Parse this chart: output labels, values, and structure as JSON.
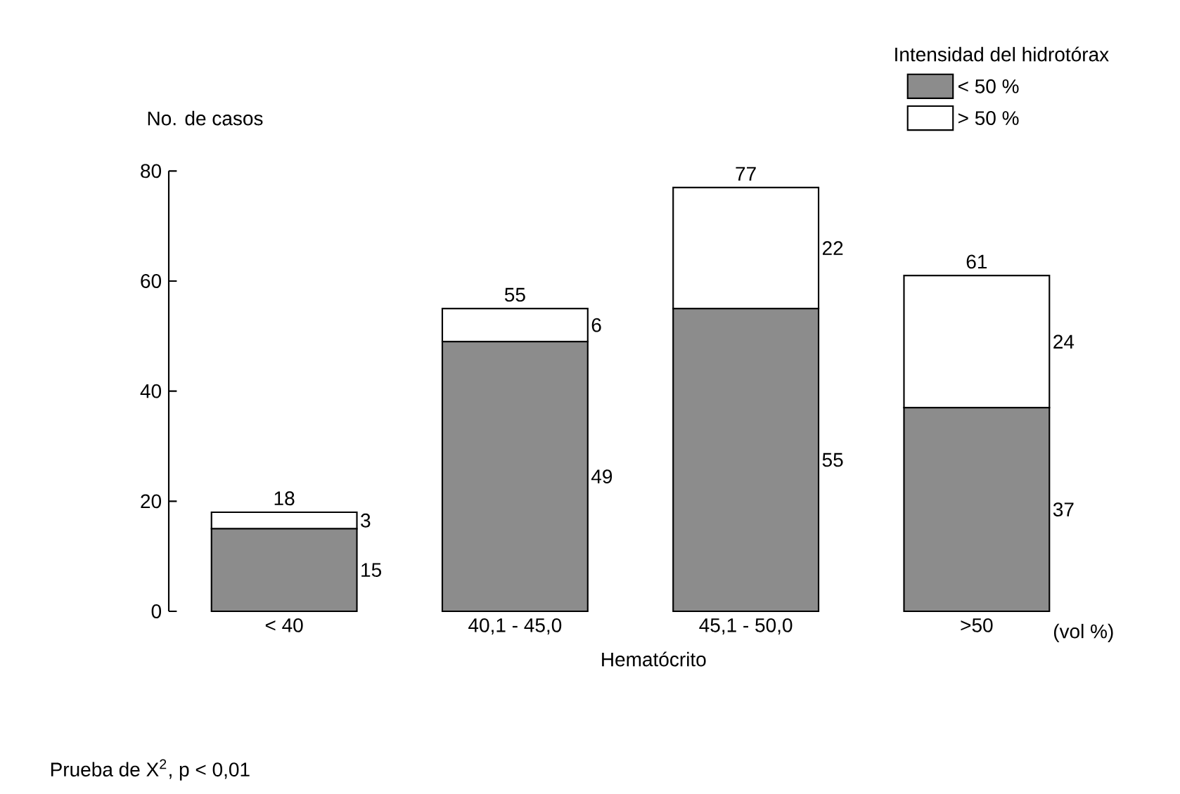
{
  "chart_data": {
    "type": "bar",
    "stacked": true,
    "categories": [
      "< 40",
      "40,1 - 45,0",
      "45,1 - 50,0",
      ">50"
    ],
    "series": [
      {
        "name": "< 50 %",
        "color": "#8c8c8c",
        "values": [
          15,
          49,
          55,
          37
        ]
      },
      {
        "name": "> 50 %",
        "color": "#ffffff",
        "values": [
          3,
          6,
          22,
          24
        ]
      }
    ],
    "totals": [
      "18",
      "55",
      "77",
      "61"
    ],
    "data_labels": true,
    "ylabel": "No. de casos",
    "xlabel": "Hematócrito",
    "legend_title": "Intensidad del hidrotórax",
    "legend": "top right",
    "ylim": [
      0,
      80
    ],
    "yticks": [
      0,
      20,
      40,
      60,
      80
    ],
    "annotations": [
      "(vol %)",
      "Prueba de X$^{2}$, p < 0,01"
    ]
  }
}
